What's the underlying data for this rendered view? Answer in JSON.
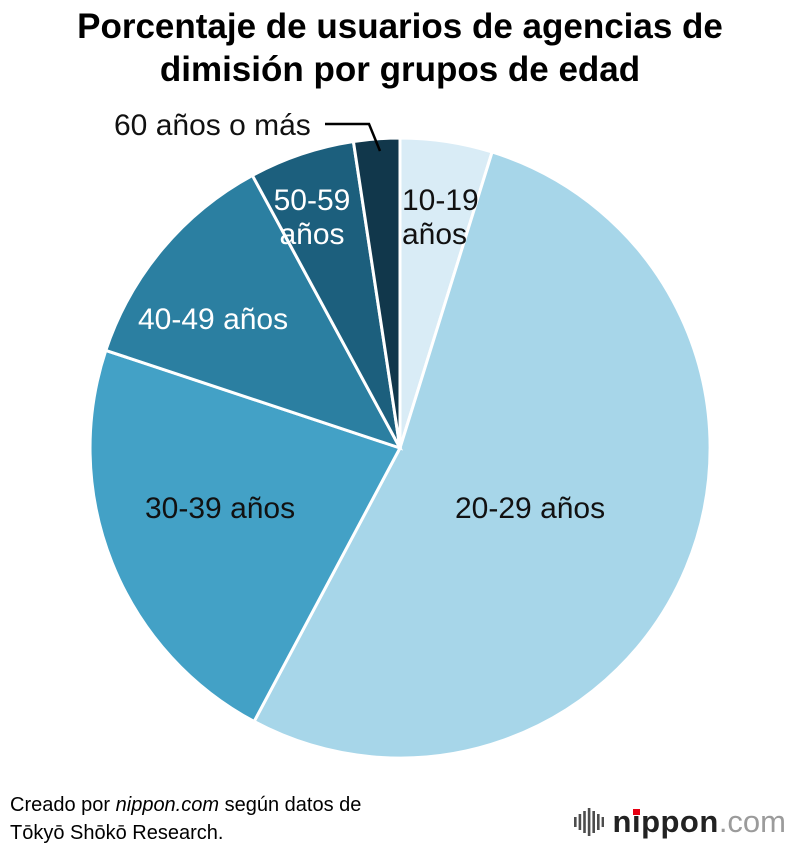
{
  "title": "Porcentaje de usuarios de agencias de\ndimisión por grupos de edad",
  "chart_data": {
    "type": "pie",
    "title": "Porcentaje de usuarios de agencias de dimisión por grupos de edad",
    "categories": [
      "10-19 años",
      "20-29 años",
      "30-39 años",
      "40-49 años",
      "50-59 años",
      "60 años o más"
    ],
    "values": [
      4.8,
      53.0,
      22.3,
      12.0,
      5.5,
      2.4
    ],
    "unit": "%",
    "values_are_estimates": true,
    "start_angle": "12 o'clock",
    "direction": "clockwise",
    "colors": [
      "#d9ecf6",
      "#a7d6e9",
      "#43a1c6",
      "#2b7fa1",
      "#1c5f7d",
      "#11374b"
    ],
    "labels_display": [
      "10-19\naños",
      "20-29 años",
      "30-39 años",
      "40-49 años",
      "50-59\naños",
      "60 años o más"
    ],
    "label_colors": [
      "#111111",
      "#111111",
      "#111111",
      "#ffffff",
      "#ffffff",
      "#111111"
    ],
    "legend": "none",
    "callout": "60 años o más labeled outside with connector line"
  },
  "footer": {
    "credit_prefix": "Creado por ",
    "credit_source": "nippon.com",
    "credit_suffix": " según datos de",
    "credit_line2": "Tōkyō Shōkō Research."
  },
  "logo": {
    "name": "nippon",
    "tld": ".com"
  }
}
